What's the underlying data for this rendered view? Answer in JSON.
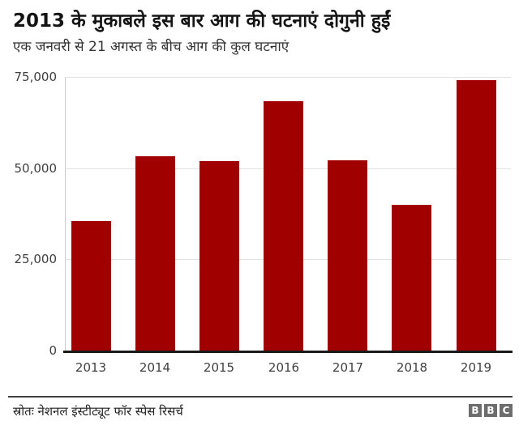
{
  "header": {
    "title": "2013 के मुकाबले इस बार आग की घटनाएं दोगुनी हुईं",
    "subtitle": "एक जनवरी से 21 अगस्त के बीच आग की कुल घटनाएं"
  },
  "chart_data": {
    "type": "bar",
    "title": "2013 के मुकाबले इस बार आग की घटनाएं दोगुनी हुईं",
    "subtitle": "एक जनवरी से 21 अगस्त के बीच आग की कुल घटनाएं",
    "categories": [
      "2013",
      "2014",
      "2015",
      "2016",
      "2017",
      "2018",
      "2019"
    ],
    "values": [
      35600,
      53200,
      52000,
      68300,
      52100,
      40000,
      74200
    ],
    "xlabel": "",
    "ylabel": "",
    "ylim": [
      0,
      75000
    ],
    "yticks": [
      {
        "value": 0,
        "label": "0"
      },
      {
        "value": 25000,
        "label": "25,000"
      },
      {
        "value": 50000,
        "label": "50,000"
      },
      {
        "value": 75000,
        "label": "75,000"
      }
    ],
    "grid": "horizontal",
    "legend": "none",
    "bar_color": "#a00000"
  },
  "footer": {
    "source": "स्रोतः नेशनल इंस्टीट्यूट फॉर स्पेस रिसर्च",
    "logo_letters": [
      "B",
      "B",
      "C"
    ]
  },
  "colors": {
    "bar": "#a00000",
    "gridline": "#e2e2e2",
    "y_axis_line": "#cccccc",
    "baseline": "#1a1a1a",
    "tick_text": "#404040",
    "title_text": "#141414",
    "logo_background": "#6d6d6d"
  }
}
